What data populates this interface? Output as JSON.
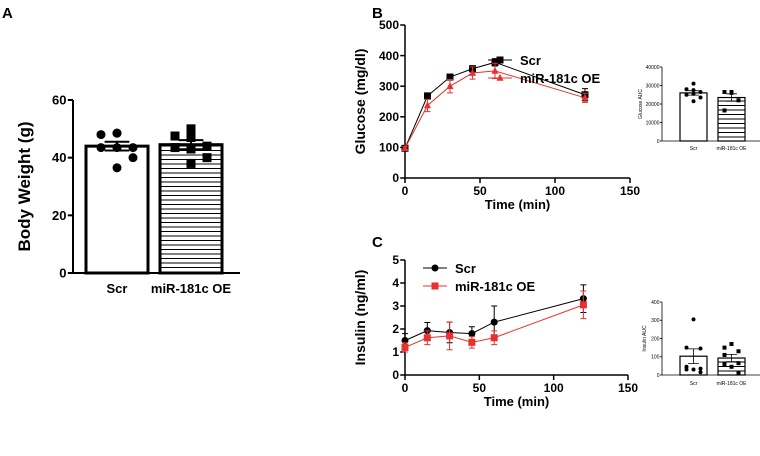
{
  "panels": {
    "a": "A",
    "b": "B",
    "c": "C"
  },
  "chart_data": [
    {
      "id": "A",
      "type": "bar",
      "title": "",
      "xlabel": "",
      "ylabel": "Body Weight (g)",
      "ylim": [
        0,
        60
      ],
      "yticks": [
        0,
        20,
        40,
        60
      ],
      "categories": [
        "Scr",
        "miR-181c OE"
      ],
      "values": [
        44,
        44.5
      ],
      "errors": [
        1.5,
        1.6
      ],
      "points": [
        [
          48.5,
          48,
          48.5,
          43.5,
          43.5,
          43.5,
          40,
          36.5
        ],
        [
          50,
          47.5,
          47,
          44,
          43.5,
          43,
          40,
          38
        ]
      ]
    },
    {
      "id": "B",
      "type": "line",
      "xlabel": "Time (min)",
      "ylabel": "Glucose (mg/dl)",
      "xlim": [
        0,
        150
      ],
      "ylim": [
        0,
        500
      ],
      "xticks": [
        0,
        50,
        100,
        150
      ],
      "yticks": [
        0,
        100,
        200,
        300,
        400,
        500
      ],
      "legend": "top-center",
      "x": [
        0,
        15,
        30,
        45,
        60,
        120
      ],
      "series": [
        {
          "name": "Scr",
          "color": "#000000",
          "marker": "square",
          "values": [
            97,
            268,
            330,
            357,
            378,
            272
          ],
          "errors": [
            5,
            10,
            8,
            10,
            12,
            20
          ]
        },
        {
          "name": "miR-181c OE",
          "color": "#e8312f",
          "marker": "triangle",
          "values": [
            97,
            237,
            300,
            343,
            350,
            262
          ],
          "errors": [
            5,
            20,
            22,
            20,
            25,
            15
          ]
        }
      ]
    },
    {
      "id": "B-inset",
      "type": "bar",
      "ylabel": "Glucose AUC",
      "ylim": [
        0,
        40000
      ],
      "yticks": [
        0,
        10000,
        20000,
        30000,
        40000
      ],
      "categories": [
        "Scr",
        "miR-181c OE"
      ],
      "values": [
        26000,
        23500
      ],
      "errors": [
        1200,
        2000
      ],
      "points": [
        [
          31000,
          28000,
          27500,
          26500,
          25000,
          25500,
          23500,
          21500
        ],
        [
          26500,
          26500,
          26000,
          22000,
          16500
        ]
      ]
    },
    {
      "id": "C",
      "type": "line",
      "xlabel": "Time (min)",
      "ylabel": "Insulin (ng/ml)",
      "xlim": [
        0,
        150
      ],
      "ylim": [
        0,
        5
      ],
      "xticks": [
        0,
        50,
        100,
        150
      ],
      "yticks": [
        0,
        1,
        2,
        3,
        4,
        5
      ],
      "legend": "top-left",
      "x": [
        0,
        15,
        30,
        45,
        60,
        120
      ],
      "series": [
        {
          "name": "Scr",
          "color": "#000000",
          "marker": "circle",
          "values": [
            1.5,
            1.93,
            1.85,
            1.8,
            2.3,
            3.32
          ],
          "errors": [
            0.3,
            0.35,
            0.45,
            0.3,
            0.7,
            0.6
          ]
        },
        {
          "name": "miR-181c OE",
          "color": "#e8312f",
          "marker": "square",
          "values": [
            1.2,
            1.62,
            1.7,
            1.42,
            1.62,
            3.05
          ],
          "errors": [
            0.2,
            0.3,
            0.6,
            0.25,
            0.3,
            0.6
          ]
        }
      ]
    },
    {
      "id": "C-inset",
      "type": "bar",
      "ylabel": "Insulin AUC",
      "ylim": [
        0,
        400
      ],
      "yticks": [
        0,
        100,
        200,
        300,
        400
      ],
      "categories": [
        "Scr",
        "miR-181c OE"
      ],
      "values": [
        103,
        93
      ],
      "errors": [
        40,
        20
      ],
      "points": [
        [
          305,
          150,
          145,
          45,
          35,
          30,
          30,
          15
        ],
        [
          170,
          150,
          130,
          110,
          65,
          60,
          45,
          10
        ]
      ]
    }
  ]
}
